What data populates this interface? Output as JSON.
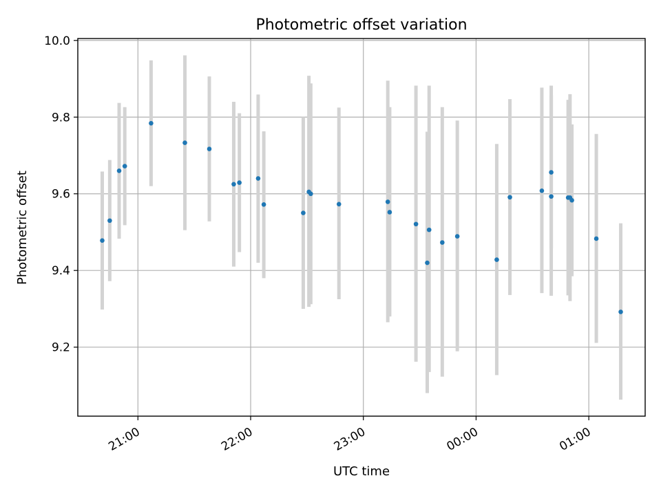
{
  "chart_data": {
    "type": "scatter",
    "title": "Photometric offset variation",
    "xlabel": "UTC time",
    "ylabel": "Photometric offset",
    "x_ticks": [
      "21:00",
      "22:00",
      "23:00",
      "00:00",
      "01:00"
    ],
    "y_ticks": [
      "9.2",
      "9.4",
      "9.6",
      "9.8",
      "10.0"
    ],
    "xlim": [
      "20:28",
      "01:30"
    ],
    "ylim": [
      9.02,
      10.005
    ],
    "grid": true,
    "colors": {
      "point": "#1f77b4",
      "errorbar": "#d3d3d3",
      "grid": "#b0b0b0"
    },
    "series": [
      {
        "points": [
          {
            "x": "20:41",
            "y": 9.478,
            "ylo": 9.298,
            "yhi": 9.658
          },
          {
            "x": "20:45",
            "y": 9.53,
            "ylo": 9.372,
            "yhi": 9.688
          },
          {
            "x": "20:50",
            "y": 9.66,
            "ylo": 9.483,
            "yhi": 9.837
          },
          {
            "x": "20:53",
            "y": 9.672,
            "ylo": 9.518,
            "yhi": 9.826
          },
          {
            "x": "21:07",
            "y": 9.784,
            "ylo": 9.62,
            "yhi": 9.948
          },
          {
            "x": "21:25",
            "y": 9.733,
            "ylo": 9.505,
            "yhi": 9.961
          },
          {
            "x": "21:38",
            "y": 9.717,
            "ylo": 9.528,
            "yhi": 9.906
          },
          {
            "x": "21:51",
            "y": 9.625,
            "ylo": 9.41,
            "yhi": 9.84
          },
          {
            "x": "21:54",
            "y": 9.629,
            "ylo": 9.448,
            "yhi": 9.81
          },
          {
            "x": "22:04",
            "y": 9.64,
            "ylo": 9.42,
            "yhi": 9.859
          },
          {
            "x": "22:07",
            "y": 9.572,
            "ylo": 9.38,
            "yhi": 9.763
          },
          {
            "x": "22:28",
            "y": 9.55,
            "ylo": 9.3,
            "yhi": 9.8
          },
          {
            "x": "22:31",
            "y": 9.605,
            "ylo": 9.305,
            "yhi": 9.908
          },
          {
            "x": "22:32",
            "y": 9.6,
            "ylo": 9.312,
            "yhi": 9.888
          },
          {
            "x": "22:47",
            "y": 9.573,
            "ylo": 9.325,
            "yhi": 9.825
          },
          {
            "x": "23:13",
            "y": 9.579,
            "ylo": 9.265,
            "yhi": 9.895
          },
          {
            "x": "23:14",
            "y": 9.552,
            "ylo": 9.28,
            "yhi": 9.826
          },
          {
            "x": "23:28",
            "y": 9.521,
            "ylo": 9.162,
            "yhi": 9.882
          },
          {
            "x": "23:34",
            "y": 9.42,
            "ylo": 9.08,
            "yhi": 9.762
          },
          {
            "x": "23:35",
            "y": 9.506,
            "ylo": 9.135,
            "yhi": 9.882
          },
          {
            "x": "23:42",
            "y": 9.473,
            "ylo": 9.123,
            "yhi": 9.826
          },
          {
            "x": "23:50",
            "y": 9.489,
            "ylo": 9.189,
            "yhi": 9.791
          },
          {
            "x": "00:11",
            "y": 9.428,
            "ylo": 9.127,
            "yhi": 9.73
          },
          {
            "x": "00:18",
            "y": 9.591,
            "ylo": 9.336,
            "yhi": 9.847
          },
          {
            "x": "00:35",
            "y": 9.608,
            "ylo": 9.341,
            "yhi": 9.877
          },
          {
            "x": "00:40",
            "y": 9.656,
            "ylo": 9.458,
            "yhi": 9.856
          },
          {
            "x": "00:40",
            "y": 9.593,
            "ylo": 9.334,
            "yhi": 9.882
          },
          {
            "x": "00:49",
            "y": 9.59,
            "ylo": 9.335,
            "yhi": 9.845
          },
          {
            "x": "00:50",
            "y": 9.59,
            "ylo": 9.32,
            "yhi": 9.86
          },
          {
            "x": "00:51",
            "y": 9.583,
            "ylo": 9.385,
            "yhi": 9.781
          },
          {
            "x": "01:04",
            "y": 9.483,
            "ylo": 9.211,
            "yhi": 9.756
          },
          {
            "x": "01:17",
            "y": 9.292,
            "ylo": 9.063,
            "yhi": 9.523
          }
        ]
      }
    ]
  }
}
